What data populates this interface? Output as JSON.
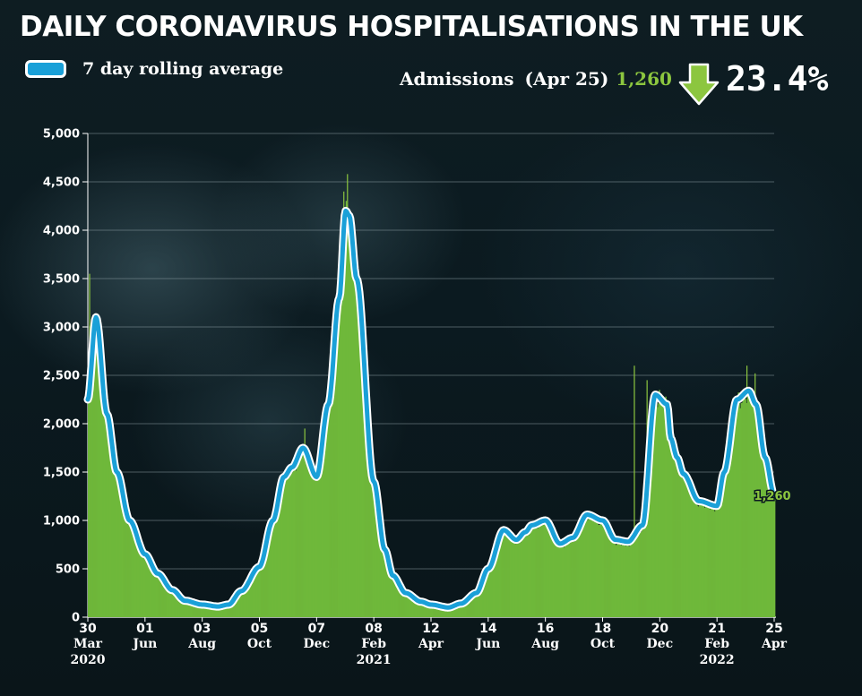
{
  "header": {
    "title": "DAILY CORONAVIRUS HOSPITALISATIONS IN THE UK"
  },
  "legend": {
    "label": "7 day rolling average",
    "swatch_color": "#1aa0d8"
  },
  "summary": {
    "label": "Admissions",
    "date": "(Apr 25)",
    "value": "1,260",
    "change": "23.4%",
    "direction": "down",
    "icon": "arrow-down-icon",
    "value_color": "#8cc63f"
  },
  "chart_data": {
    "type": "bar",
    "title": "DAILY CORONAVIRUS HOSPITALISATIONS IN THE UK",
    "xlabel": "",
    "ylabel": "",
    "ylim": [
      0,
      5000
    ],
    "yticks": [
      "0",
      "500",
      "1,000",
      "1,500",
      "2,000",
      "2,500",
      "3,000",
      "3,500",
      "4,000",
      "4,500",
      "5,000"
    ],
    "grid": true,
    "x_ticks": [
      {
        "day": "30",
        "month": "Mar",
        "year": "2020"
      },
      {
        "day": "01",
        "month": "Jun",
        "year": ""
      },
      {
        "day": "03",
        "month": "Aug",
        "year": ""
      },
      {
        "day": "05",
        "month": "Oct",
        "year": ""
      },
      {
        "day": "07",
        "month": "Dec",
        "year": ""
      },
      {
        "day": "08",
        "month": "Feb",
        "year": "2021"
      },
      {
        "day": "12",
        "month": "Apr",
        "year": ""
      },
      {
        "day": "14",
        "month": "Jun",
        "year": ""
      },
      {
        "day": "16",
        "month": "Aug",
        "year": ""
      },
      {
        "day": "18",
        "month": "Oct",
        "year": ""
      },
      {
        "day": "20",
        "month": "Dec",
        "year": ""
      },
      {
        "day": "21",
        "month": "Feb",
        "year": "2022"
      },
      {
        "day": "25",
        "month": "Apr",
        "year": ""
      }
    ],
    "end_label": "1,260",
    "series": [
      {
        "name": "7 day rolling average",
        "color": "#1aa0d8",
        "x": [
          "2020-03-30",
          "2020-04-08",
          "2020-04-20",
          "2020-05-01",
          "2020-05-15",
          "2020-06-01",
          "2020-06-15",
          "2020-07-01",
          "2020-07-15",
          "2020-08-03",
          "2020-08-20",
          "2020-09-01",
          "2020-09-15",
          "2020-10-05",
          "2020-10-20",
          "2020-11-01",
          "2020-11-10",
          "2020-11-22",
          "2020-12-07",
          "2020-12-20",
          "2021-01-01",
          "2021-01-08",
          "2021-01-12",
          "2021-01-20",
          "2021-02-08",
          "2021-02-20",
          "2021-03-01",
          "2021-03-15",
          "2021-04-01",
          "2021-04-12",
          "2021-05-01",
          "2021-05-15",
          "2021-06-01",
          "2021-06-14",
          "2021-07-01",
          "2021-07-15",
          "2021-07-25",
          "2021-08-01",
          "2021-08-16",
          "2021-09-01",
          "2021-09-15",
          "2021-10-01",
          "2021-10-18",
          "2021-11-01",
          "2021-11-15",
          "2021-12-01",
          "2021-12-15",
          "2021-12-28",
          "2022-01-01",
          "2022-01-08",
          "2022-01-15",
          "2022-02-01",
          "2022-02-21",
          "2022-03-01",
          "2022-03-15",
          "2022-03-28",
          "2022-04-05",
          "2022-04-15",
          "2022-04-25"
        ],
        "values": [
          2250,
          3100,
          2100,
          1500,
          1000,
          650,
          450,
          280,
          170,
          130,
          110,
          130,
          270,
          520,
          1000,
          1450,
          1550,
          1750,
          1450,
          2200,
          3300,
          4200,
          4150,
          3500,
          1400,
          700,
          430,
          250,
          160,
          130,
          100,
          140,
          250,
          500,
          900,
          800,
          880,
          950,
          1000,
          760,
          820,
          1060,
          1000,
          800,
          780,
          950,
          2300,
          2200,
          1850,
          1650,
          1480,
          1200,
          1150,
          1500,
          2250,
          2340,
          2200,
          1650,
          1260
        ]
      }
    ],
    "daily_admissions": {
      "name": "",
      "color": "#6fb83a",
      "description": "",
      "spikes": [
        {
          "x": "2020-04-01",
          "value": 3550
        },
        {
          "x": "2020-11-24",
          "value": 1950
        },
        {
          "x": "2021-01-06",
          "value": 4400
        },
        {
          "x": "2021-01-10",
          "value": 4580
        },
        {
          "x": "2021-11-22",
          "value": 2600
        },
        {
          "x": "2021-12-06",
          "value": 2450
        },
        {
          "x": "2022-03-26",
          "value": 2600
        },
        {
          "x": "2022-04-04",
          "value": 2520
        }
      ]
    }
  }
}
